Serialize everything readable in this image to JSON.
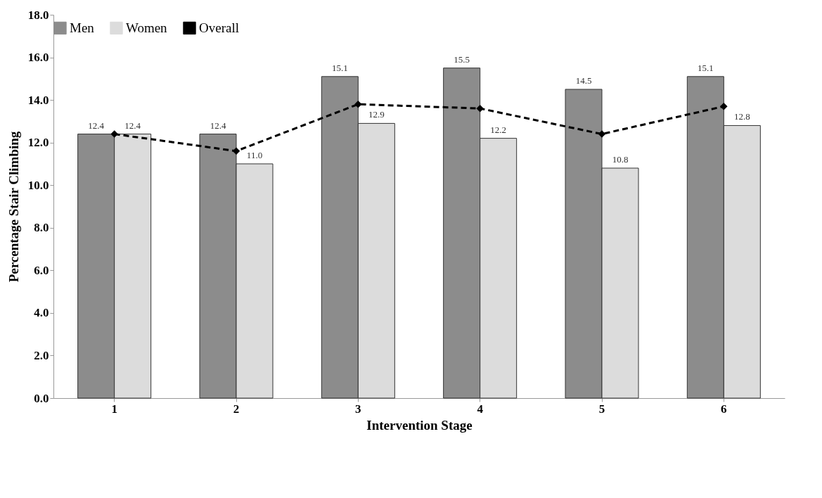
{
  "chart_data": {
    "type": "bar",
    "xlabel": "Intervention Stage",
    "ylabel": "Percentage Stair Climbing",
    "categories": [
      "1",
      "2",
      "3",
      "4",
      "5",
      "6"
    ],
    "series": [
      {
        "name": "Men",
        "color": "#8c8c8c",
        "values": [
          12.4,
          12.4,
          15.1,
          15.5,
          14.5,
          15.1
        ],
        "value_labels": [
          "12.4",
          "12.4",
          "15.1",
          "15.5",
          "14.5",
          "15.1"
        ]
      },
      {
        "name": "Women",
        "color": "#dcdcdc",
        "values": [
          12.4,
          11.0,
          12.9,
          12.2,
          10.8,
          12.8
        ],
        "value_labels": [
          "12.4",
          "11.0",
          "12.9",
          "12.2",
          "10.8",
          "12.8"
        ]
      },
      {
        "name": "Overall",
        "type": "line",
        "color": "#000000",
        "marker": "diamond",
        "line_style": "dashed",
        "values": [
          12.4,
          11.6,
          13.8,
          13.6,
          12.4,
          13.7
        ]
      }
    ],
    "ylim": [
      0,
      18
    ],
    "yticks": [
      {
        "value": 0,
        "label": "0.0"
      },
      {
        "value": 2,
        "label": "2.0"
      },
      {
        "value": 4,
        "label": "4.0"
      },
      {
        "value": 6,
        "label": "6.0"
      },
      {
        "value": 8,
        "label": "8.0"
      },
      {
        "value": 10,
        "label": "10.0"
      },
      {
        "value": 12,
        "label": "12.0"
      },
      {
        "value": 14,
        "label": "14.0"
      },
      {
        "value": 16,
        "label": "16.0"
      },
      {
        "value": 18,
        "label": "18.0"
      }
    ],
    "grid": false,
    "legend": "top"
  }
}
